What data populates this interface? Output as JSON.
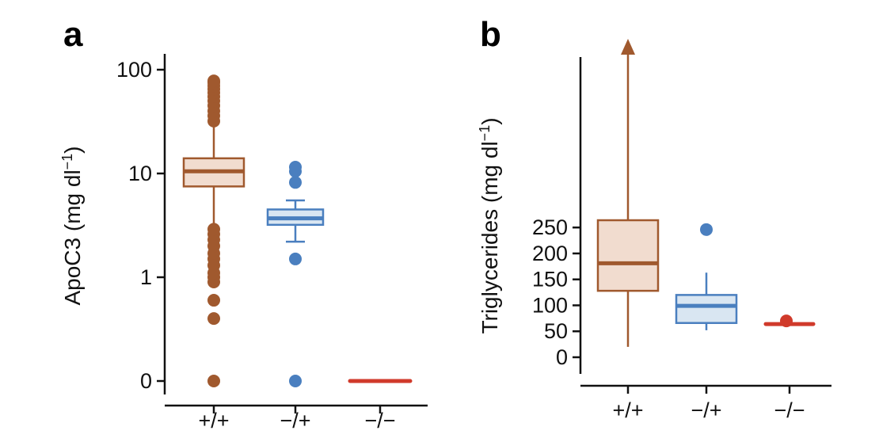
{
  "chart_data": [
    {
      "type": "box",
      "panel_label": "a",
      "ylabel_main": "ApoC3 (mg dl",
      "ylabel_sup": "−1",
      "ylabel_close": ")",
      "y_scale": "log-with-zero",
      "yticks": [
        "100",
        "10",
        "1",
        "0"
      ],
      "categories": [
        "+/+",
        "−/+",
        "−/−"
      ],
      "colors": [
        "#a0592e",
        "#4a7fbf",
        "#d03a2b"
      ],
      "fills": [
        "#f1dccf",
        "#d9e6f2",
        "#fbe0dc"
      ],
      "boxes": [
        {
          "category": "+/+",
          "whisker_low": 3.0,
          "q1": 7.5,
          "median": 10.5,
          "q3": 14.0,
          "whisker_high": 30.0,
          "outliers": [
            0,
            0.4,
            0.6,
            0.9,
            1.0,
            1.1,
            1.3,
            1.5,
            1.7,
            2.0,
            2.3,
            2.6,
            2.9,
            32,
            36,
            40,
            45,
            50,
            55,
            60,
            65,
            70,
            75,
            78
          ]
        },
        {
          "category": "−/+",
          "whisker_low": 2.2,
          "q1": 3.2,
          "median": 3.7,
          "q3": 4.5,
          "whisker_high": 5.5,
          "outliers": [
            0,
            1.5,
            8.2,
            10.5,
            11.5
          ]
        },
        {
          "category": "−/−",
          "whisker_low": 0,
          "q1": 0,
          "median": 0,
          "q3": 0,
          "whisker_high": 0,
          "outliers": []
        }
      ]
    },
    {
      "type": "box",
      "panel_label": "b",
      "ylabel_main": "Triglycerides (mg dl",
      "ylabel_sup": "−1",
      "ylabel_close": ")",
      "y_scale": "linear",
      "ylim": [
        0,
        290
      ],
      "yticks": [
        0,
        50,
        100,
        150,
        200,
        250
      ],
      "categories": [
        "+/+",
        "−/+",
        "−/−"
      ],
      "colors": [
        "#a0592e",
        "#4a7fbf",
        "#d03a2b"
      ],
      "fills": [
        "#f1dccf",
        "#d9e6f2",
        "#fbe0dc"
      ],
      "boxes": [
        {
          "category": "+/+",
          "whisker_low": 20,
          "q1": 128,
          "median": 181,
          "q3": 264,
          "whisker_high": 300,
          "arrow_up": true,
          "outliers": []
        },
        {
          "category": "−/+",
          "whisker_low": 52,
          "q1": 66,
          "median": 99,
          "q3": 120,
          "whisker_high": 163,
          "outliers": [
            246
          ]
        },
        {
          "category": "−/−",
          "whisker_low": 64,
          "q1": 64,
          "median": 64,
          "q3": 64,
          "whisker_high": 64,
          "outliers": [
            70
          ]
        }
      ]
    }
  ]
}
